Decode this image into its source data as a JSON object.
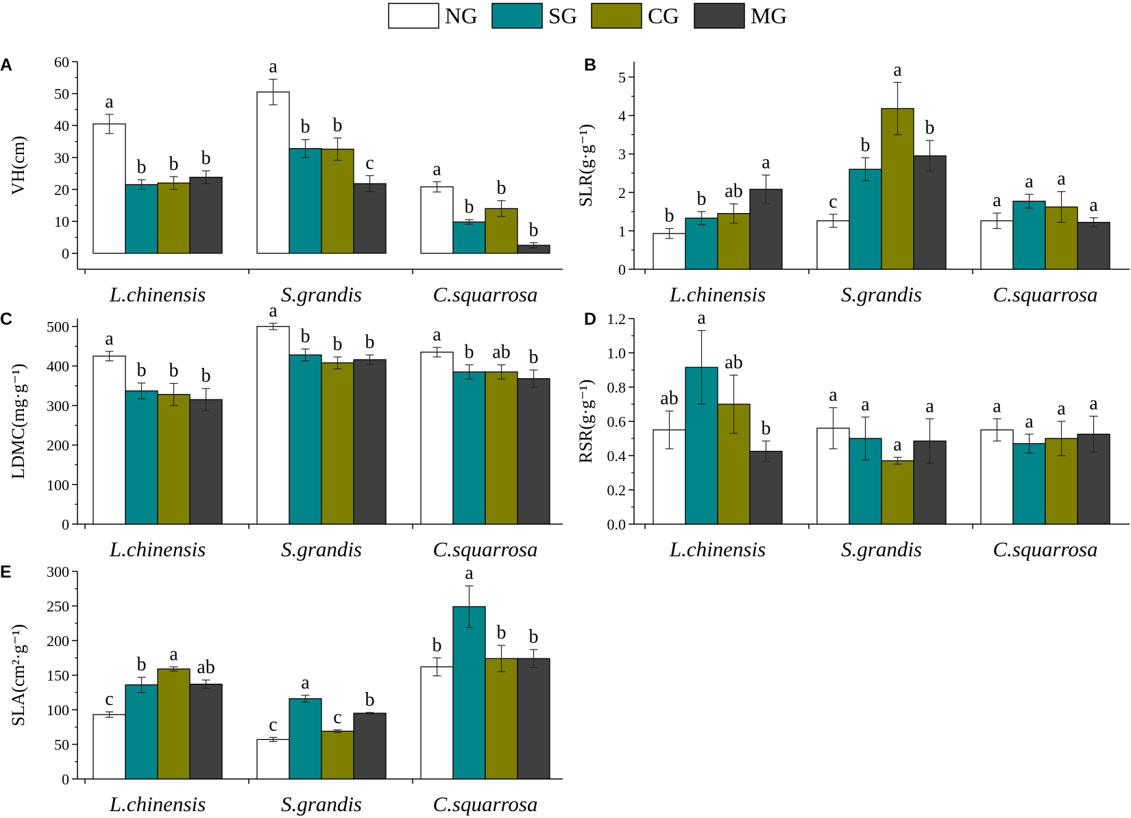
{
  "legend": [
    {
      "label": "NG",
      "color": "#ffffff"
    },
    {
      "label": "SG",
      "color": "#00868a"
    },
    {
      "label": "CG",
      "color": "#808000"
    },
    {
      "label": "MG",
      "color": "#3f3f3f"
    }
  ],
  "chart_data": [
    {
      "panel": "A",
      "type": "bar",
      "categories": [
        "L.chinensis",
        "S.grandis",
        "C.squarrosa"
      ],
      "ylabel": "VH(cm)",
      "ylim": [
        -5,
        60
      ],
      "yticks": [
        "0",
        "10",
        "20",
        "30",
        "40",
        "50",
        "60"
      ],
      "series": [
        {
          "name": "NG",
          "values": [
            40.5,
            50.5,
            20.8
          ],
          "errors": [
            3.0,
            4.0,
            1.6
          ],
          "letters": [
            "a",
            "a",
            "a"
          ]
        },
        {
          "name": "SG",
          "values": [
            21.5,
            32.8,
            9.8
          ],
          "errors": [
            1.5,
            2.8,
            0.7
          ],
          "letters": [
            "b",
            "b",
            "b"
          ]
        },
        {
          "name": "CG",
          "values": [
            22.0,
            32.6,
            14.0
          ],
          "errors": [
            2.0,
            3.5,
            2.5
          ],
          "letters": [
            "b",
            "b",
            "b"
          ]
        },
        {
          "name": "MG",
          "values": [
            23.8,
            21.8,
            2.5
          ],
          "errors": [
            2.0,
            2.5,
            0.8
          ],
          "letters": [
            "b",
            "c",
            "b"
          ]
        }
      ]
    },
    {
      "panel": "B",
      "type": "bar",
      "categories": [
        "L.chinensis",
        "S.grandis",
        "C.squarrosa"
      ],
      "ylabel": "SLR(g·g⁻¹)",
      "ylim": [
        0,
        5.4
      ],
      "yticks": [
        "0",
        "1",
        "2",
        "3",
        "4",
        "5"
      ],
      "series": [
        {
          "name": "NG",
          "values": [
            0.93,
            1.26,
            1.26
          ],
          "errors": [
            0.13,
            0.17,
            0.2
          ],
          "letters": [
            "b",
            "c",
            "a"
          ]
        },
        {
          "name": "SG",
          "values": [
            1.33,
            2.6,
            1.77
          ],
          "errors": [
            0.17,
            0.3,
            0.18
          ],
          "letters": [
            "b",
            "b",
            "a"
          ]
        },
        {
          "name": "CG",
          "values": [
            1.45,
            4.18,
            1.62
          ],
          "errors": [
            0.25,
            0.68,
            0.4
          ],
          "letters": [
            "ab",
            "a",
            "a"
          ]
        },
        {
          "name": "MG",
          "values": [
            2.08,
            2.95,
            1.22
          ],
          "errors": [
            0.37,
            0.4,
            0.12
          ],
          "letters": [
            "a",
            "b",
            "a"
          ]
        }
      ]
    },
    {
      "panel": "C",
      "type": "bar",
      "categories": [
        "L.chinensis",
        "S.grandis",
        "C.squarrosa"
      ],
      "ylabel": "LDMC(mg·g⁻¹)",
      "ylim": [
        0,
        520
      ],
      "yticks": [
        "0",
        "100",
        "200",
        "300",
        "400",
        "500"
      ],
      "series": [
        {
          "name": "NG",
          "values": [
            425,
            500,
            435
          ],
          "errors": [
            12,
            8,
            12
          ],
          "letters": [
            "a",
            "a",
            "a"
          ]
        },
        {
          "name": "SG",
          "values": [
            337,
            428,
            385
          ],
          "errors": [
            20,
            15,
            18
          ],
          "letters": [
            "b",
            "b",
            "b"
          ]
        },
        {
          "name": "CG",
          "values": [
            328,
            408,
            385
          ],
          "errors": [
            28,
            15,
            18
          ],
          "letters": [
            "b",
            "b",
            "ab"
          ]
        },
        {
          "name": "MG",
          "values": [
            315,
            416,
            368
          ],
          "errors": [
            28,
            12,
            22
          ],
          "letters": [
            "b",
            "b",
            "b"
          ]
        }
      ]
    },
    {
      "panel": "D",
      "type": "bar",
      "categories": [
        "L.chinensis",
        "S.grandis",
        "C.squarrosa"
      ],
      "ylabel": "RSR(g·g⁻¹)",
      "ylim": [
        0,
        1.2
      ],
      "yticks": [
        "0.0",
        "0.2",
        "0.4",
        "0.6",
        "0.8",
        "1.0",
        "1.2"
      ],
      "series": [
        {
          "name": "NG",
          "values": [
            0.55,
            0.56,
            0.55
          ],
          "errors": [
            0.11,
            0.12,
            0.065
          ],
          "letters": [
            "ab",
            "a",
            "a"
          ]
        },
        {
          "name": "SG",
          "values": [
            0.915,
            0.5,
            0.47
          ],
          "errors": [
            0.215,
            0.125,
            0.055
          ],
          "letters": [
            "a",
            "a",
            "a"
          ]
        },
        {
          "name": "CG",
          "values": [
            0.7,
            0.37,
            0.5
          ],
          "errors": [
            0.17,
            0.02,
            0.1
          ],
          "letters": [
            "ab",
            "a",
            "a"
          ]
        },
        {
          "name": "MG",
          "values": [
            0.425,
            0.485,
            0.525
          ],
          "errors": [
            0.06,
            0.13,
            0.105
          ],
          "letters": [
            "b",
            "a",
            "a"
          ]
        }
      ]
    },
    {
      "panel": "E",
      "type": "bar",
      "categories": [
        "L.chinensis",
        "S.grandis",
        "C.squarrosa"
      ],
      "ylabel": "SLA(cm²·g⁻¹)",
      "ylim": [
        0,
        300
      ],
      "yticks": [
        "0",
        "50",
        "100",
        "150",
        "200",
        "250",
        "300"
      ],
      "series": [
        {
          "name": "NG",
          "values": [
            93,
            57,
            162
          ],
          "errors": [
            4,
            3,
            13
          ],
          "letters": [
            "c",
            "c",
            "b"
          ]
        },
        {
          "name": "SG",
          "values": [
            136,
            116,
            249
          ],
          "errors": [
            11,
            5,
            30
          ],
          "letters": [
            "b",
            "a",
            "a"
          ]
        },
        {
          "name": "CG",
          "values": [
            159,
            69,
            174
          ],
          "errors": [
            3,
            2,
            19
          ],
          "letters": [
            "a",
            "c",
            "b"
          ]
        },
        {
          "name": "MG",
          "values": [
            137,
            95,
            174
          ],
          "errors": [
            6,
            1,
            13
          ],
          "letters": [
            "ab",
            "b",
            "b"
          ]
        }
      ]
    }
  ]
}
